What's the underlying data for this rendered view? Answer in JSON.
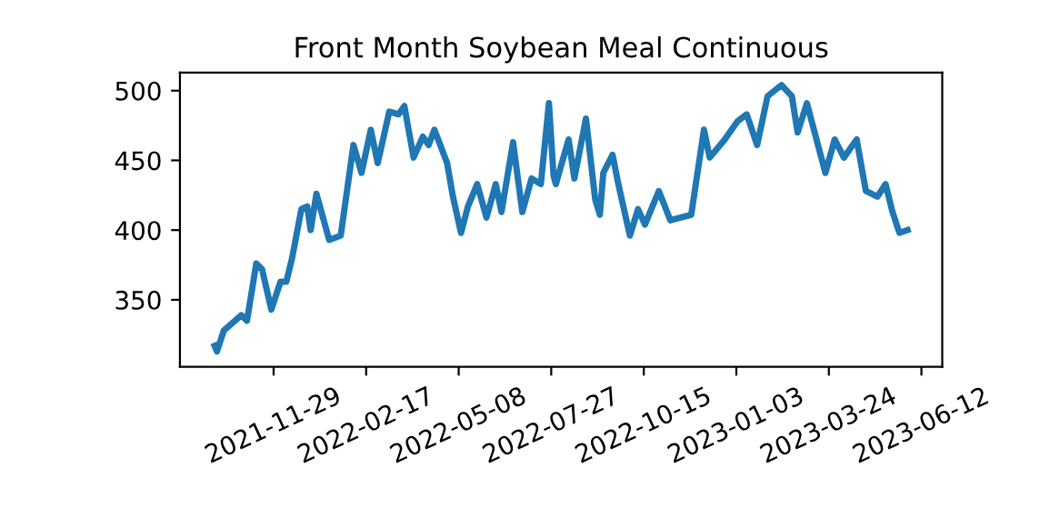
{
  "chart_data": {
    "type": "line",
    "title": "Front Month Soybean Meal Continuous",
    "x": [
      "2021-10-09",
      "2021-10-11",
      "2021-10-17",
      "2021-11-01",
      "2021-11-06",
      "2021-11-14",
      "2021-11-19",
      "2021-11-27",
      "2021-12-05",
      "2021-12-10",
      "2021-12-15",
      "2021-12-23",
      "2021-12-28",
      "2021-12-31",
      "2022-01-05",
      "2022-01-16",
      "2022-01-26",
      "2022-02-06",
      "2022-02-13",
      "2022-02-21",
      "2022-02-27",
      "2022-03-09",
      "2022-03-17",
      "2022-03-22",
      "2022-03-30",
      "2022-04-07",
      "2022-04-12",
      "2022-04-17",
      "2022-04-28",
      "2022-05-03",
      "2022-05-10",
      "2022-05-16",
      "2022-05-24",
      "2022-06-01",
      "2022-06-09",
      "2022-06-14",
      "2022-06-24",
      "2022-07-02",
      "2022-07-10",
      "2022-07-18",
      "2022-07-25",
      "2022-07-29",
      "2022-07-31",
      "2022-08-11",
      "2022-08-16",
      "2022-08-26",
      "2022-09-03",
      "2022-09-07",
      "2022-09-10",
      "2022-09-18",
      "2022-09-23",
      "2022-10-03",
      "2022-10-10",
      "2022-10-16",
      "2022-10-28",
      "2022-11-07",
      "2022-11-25",
      "2022-12-06",
      "2022-12-11",
      "2022-12-24",
      "2023-01-04",
      "2023-01-12",
      "2023-01-21",
      "2023-01-30",
      "2023-02-11",
      "2023-02-20",
      "2023-02-25",
      "2023-03-05",
      "2023-03-21",
      "2023-03-29",
      "2023-04-06",
      "2023-04-17",
      "2023-04-25",
      "2023-05-05",
      "2023-05-12",
      "2023-05-18",
      "2023-05-24",
      "2023-05-31"
    ],
    "series": [
      {
        "color": "#1f77b4",
        "values": [
          317,
          313,
          328,
          339,
          335,
          376,
          372,
          343,
          363,
          363,
          380,
          415,
          417,
          400,
          426,
          393,
          396,
          461,
          441,
          472,
          448,
          485,
          483,
          489,
          452,
          467,
          461,
          472,
          448,
          424,
          398,
          417,
          433,
          409,
          433,
          413,
          463,
          413,
          437,
          433,
          491,
          439,
          433,
          465,
          437,
          480,
          422,
          411,
          441,
          454,
          433,
          396,
          415,
          404,
          428,
          407,
          411,
          472,
          452,
          465,
          478,
          483,
          461,
          496,
          504,
          496,
          470,
          491,
          441,
          465,
          452,
          465,
          428,
          424,
          433,
          413,
          398,
          400
        ]
      }
    ],
    "xlim": [
      "2021-09-09",
      "2023-06-30"
    ],
    "xticks": [
      {
        "value": "2021-11-29",
        "label": "2021-11-29"
      },
      {
        "value": "2022-02-17",
        "label": "2022-02-17"
      },
      {
        "value": "2022-05-08",
        "label": "2022-05-08"
      },
      {
        "value": "2022-07-27",
        "label": "2022-07-27"
      },
      {
        "value": "2022-10-15",
        "label": "2022-10-15"
      },
      {
        "value": "2023-01-03",
        "label": "2023-01-03"
      },
      {
        "value": "2023-03-24",
        "label": "2023-03-24"
      },
      {
        "value": "2023-06-12",
        "label": "2023-06-12"
      }
    ],
    "ylim": [
      302,
      513
    ],
    "yticks": [
      350,
      400,
      450,
      500
    ],
    "grid": false,
    "legend": false,
    "marker": "none",
    "line_style": "solid"
  }
}
